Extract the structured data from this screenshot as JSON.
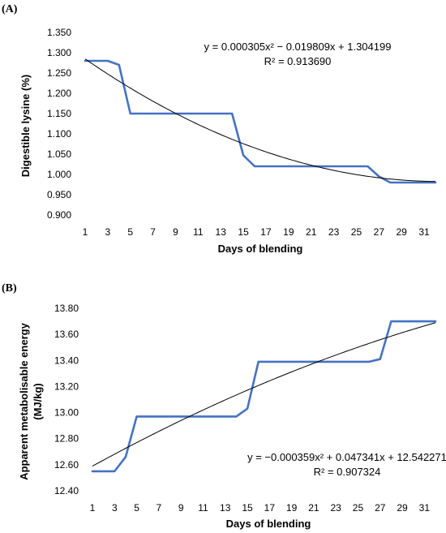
{
  "chart_data": [
    {
      "panel_label": "(A)",
      "type": "line",
      "xlabel": "Days of blending",
      "ylabel": "Digestible lysine (%)",
      "ylim": [
        0.9,
        1.35
      ],
      "y_ticks": [
        "0.900",
        "0.950",
        "1.000",
        "1.050",
        "1.100",
        "1.150",
        "1.200",
        "1.250",
        "1.300",
        "1.350"
      ],
      "x_ticks": [
        "1",
        "3",
        "5",
        "7",
        "9",
        "11",
        "13",
        "15",
        "17",
        "19",
        "21",
        "23",
        "25",
        "27",
        "29",
        "31"
      ],
      "xlim": [
        1,
        32
      ],
      "series": [
        {
          "color": "#4472C4",
          "x": [
            1,
            2,
            3,
            4,
            5,
            6,
            7,
            8,
            9,
            10,
            11,
            12,
            13,
            14,
            15,
            16,
            17,
            18,
            19,
            20,
            21,
            22,
            23,
            24,
            25,
            26,
            27,
            28,
            29,
            30,
            31,
            32
          ],
          "y": [
            1.28,
            1.28,
            1.28,
            1.27,
            1.15,
            1.15,
            1.15,
            1.15,
            1.15,
            1.15,
            1.15,
            1.15,
            1.15,
            1.15,
            1.047,
            1.02,
            1.02,
            1.02,
            1.02,
            1.02,
            1.02,
            1.02,
            1.02,
            1.02,
            1.02,
            1.02,
            0.995,
            0.98,
            0.98,
            0.98,
            0.98,
            0.98
          ]
        }
      ],
      "trendline": {
        "type": "polynomial",
        "coefficients": [
          0.000305,
          -0.019809,
          1.304199
        ],
        "color": "#000000",
        "equation": "y = 0.000305x² − 0.019809x + 1.304199",
        "r2": "R² = 0.913690"
      }
    },
    {
      "panel_label": "(B)",
      "type": "line",
      "xlabel": "Days of blending",
      "ylabel": "Apparent metabolisable energy",
      "ylabel2": "(MJ/kg)",
      "ylim": [
        12.4,
        13.8
      ],
      "y_ticks": [
        "12.40",
        "12.60",
        "12.80",
        "13.00",
        "13.20",
        "13.40",
        "13.60",
        "13.80"
      ],
      "x_ticks": [
        "1",
        "3",
        "5",
        "7",
        "9",
        "11",
        "13",
        "15",
        "17",
        "19",
        "21",
        "23",
        "25",
        "27",
        "29",
        "31"
      ],
      "xlim": [
        1,
        32
      ],
      "series": [
        {
          "color": "#4472C4",
          "x": [
            1,
            2,
            3,
            4,
            5,
            6,
            7,
            8,
            9,
            10,
            11,
            12,
            13,
            14,
            15,
            16,
            17,
            18,
            19,
            20,
            21,
            22,
            23,
            24,
            25,
            26,
            27,
            28,
            29,
            30,
            31,
            32
          ],
          "y": [
            12.55,
            12.55,
            12.55,
            12.66,
            12.97,
            12.97,
            12.97,
            12.97,
            12.97,
            12.97,
            12.97,
            12.97,
            12.97,
            12.97,
            13.03,
            13.39,
            13.39,
            13.39,
            13.39,
            13.39,
            13.39,
            13.39,
            13.39,
            13.39,
            13.39,
            13.39,
            13.41,
            13.7,
            13.7,
            13.7,
            13.7,
            13.7
          ]
        }
      ],
      "trendline": {
        "type": "polynomial",
        "coefficients": [
          -0.000359,
          0.047341,
          12.542271
        ],
        "color": "#000000",
        "equation": "y = −0.000359x² + 0.047341x + 12.542271",
        "r2": "R² = 0.907324"
      }
    }
  ]
}
